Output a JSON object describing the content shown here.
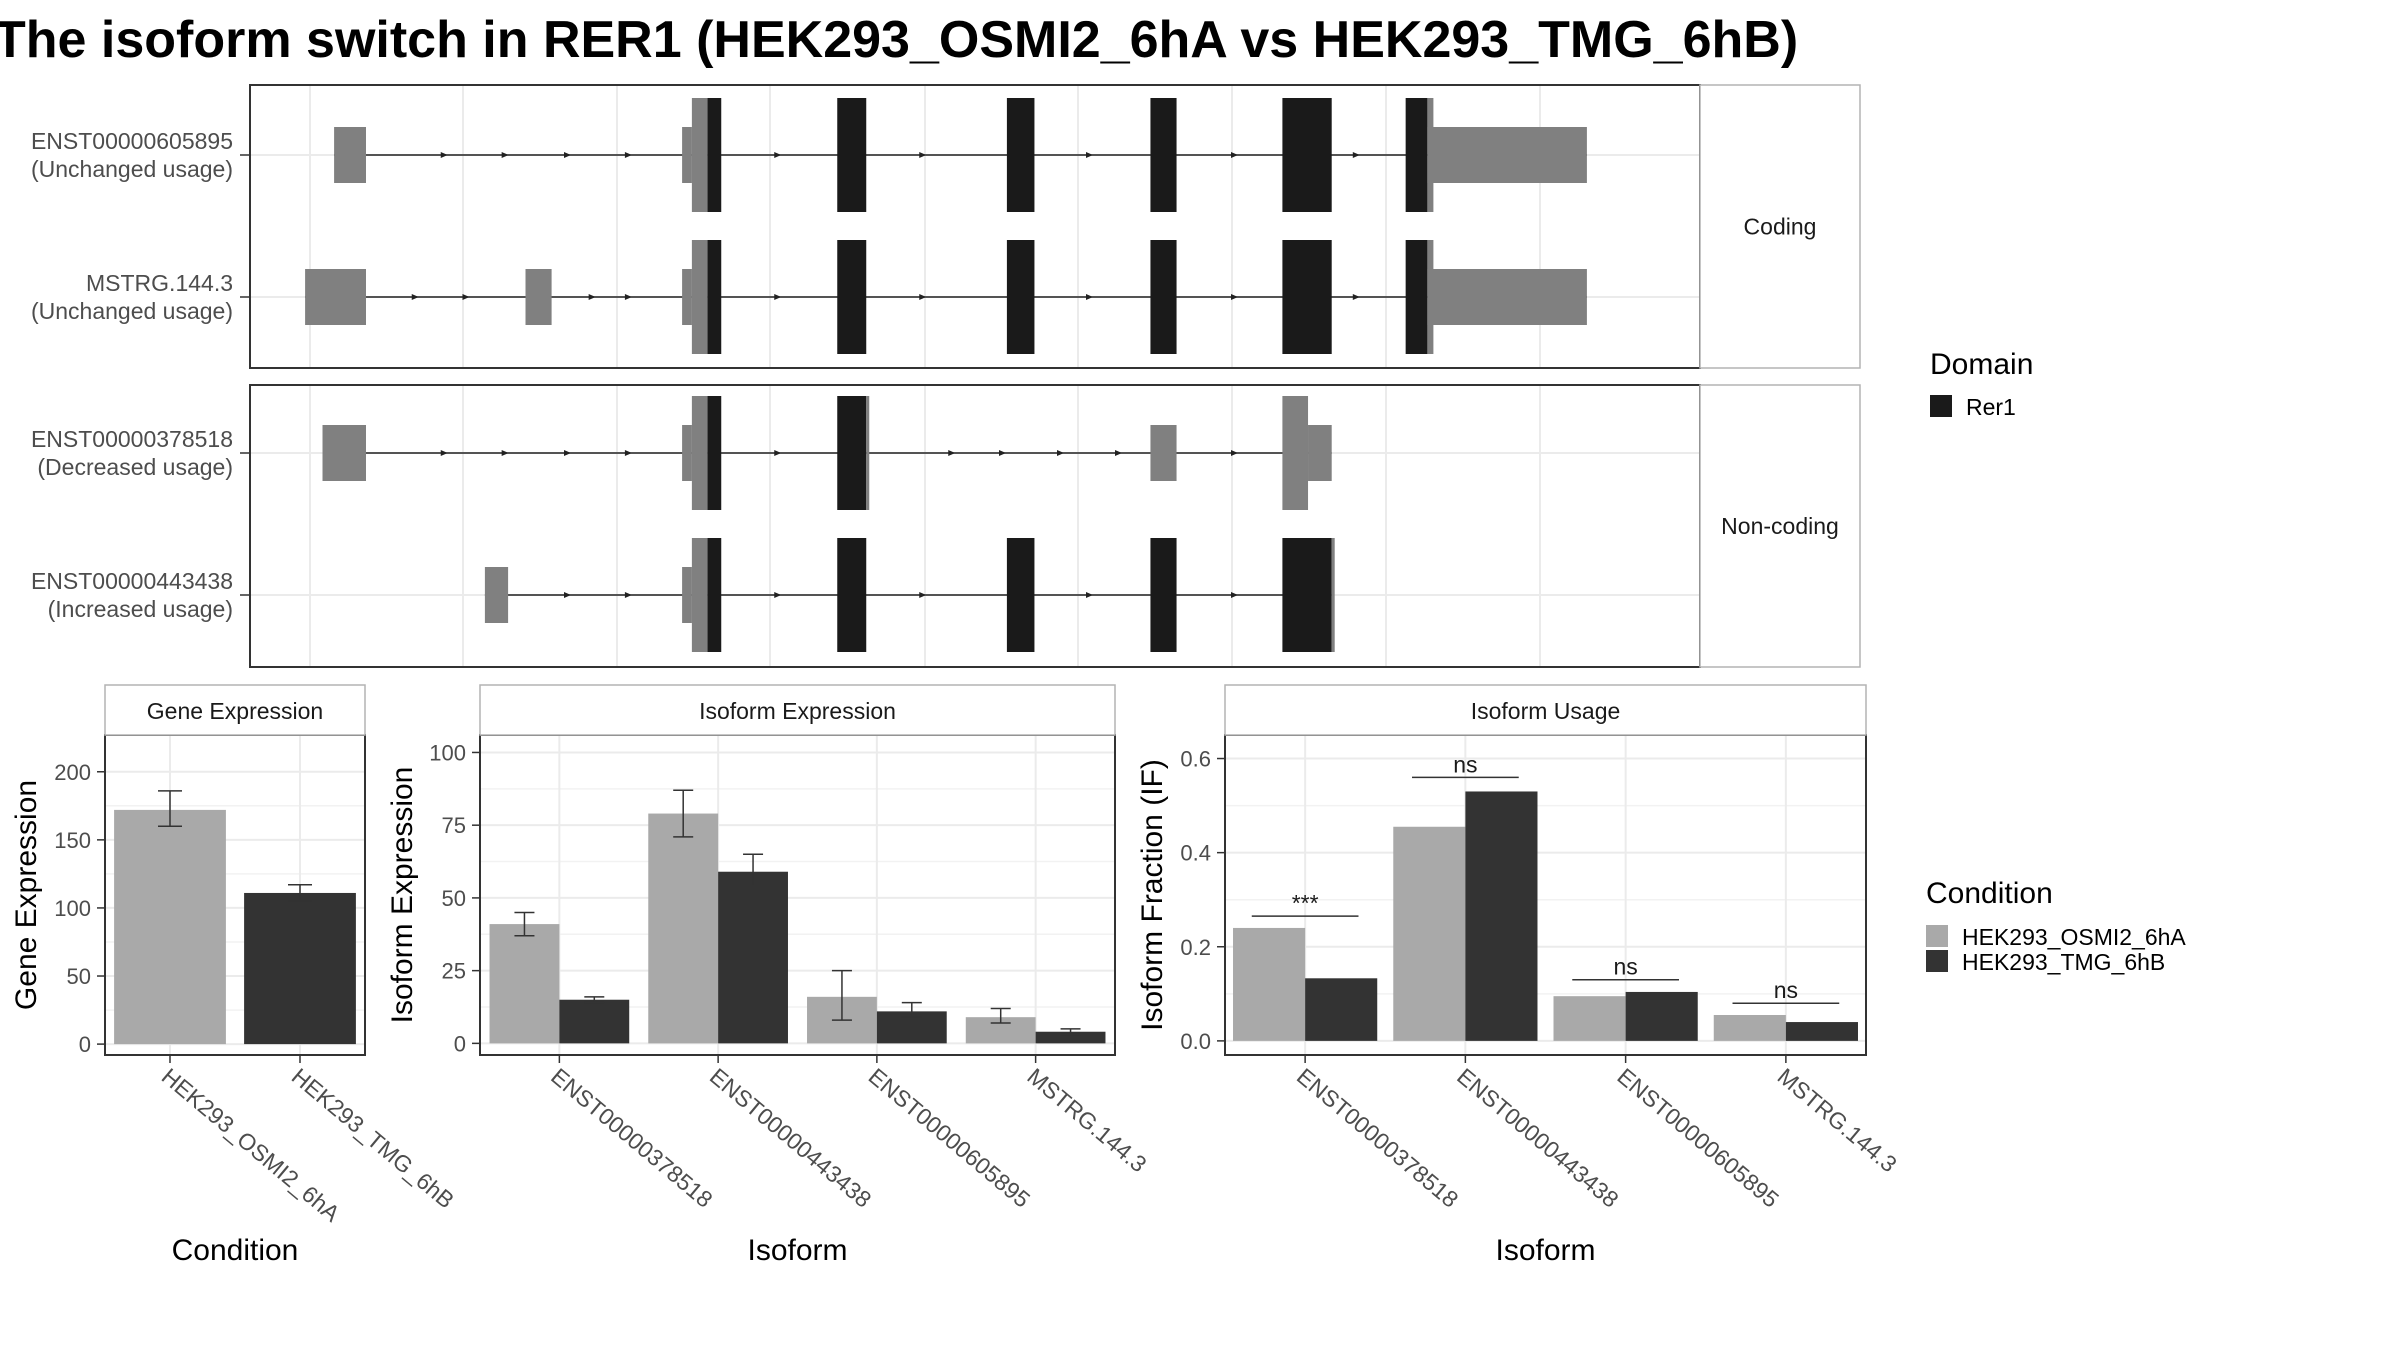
{
  "title": "The isoform switch in RER1 (HEK293_OSMI2_6hA vs HEK293_TMG_6hB)",
  "colors": {
    "utr": "#808080",
    "domain": "#1a1a1a",
    "cond_a": "#a9a9a9",
    "cond_b": "#333333",
    "strip_bg": "#ffffff",
    "grid": "#ebebeb",
    "panel_border": "#333333",
    "strip_border": "#b3b3b3"
  },
  "structure": {
    "groups": [
      {
        "label": "Coding",
        "transcripts": [
          {
            "id": "ENST00000605895",
            "usage": "(Unchanged usage)",
            "exons": [
              {
                "s": 0.058,
                "e": 0.08,
                "h": "utr"
              },
              {
                "s": 0.298,
                "e": 0.325,
                "h": "utr_cds"
              },
              {
                "s": 0.405,
                "e": 0.425,
                "h": "cds"
              },
              {
                "s": 0.522,
                "e": 0.541,
                "h": "cds"
              },
              {
                "s": 0.621,
                "e": 0.639,
                "h": "cds"
              },
              {
                "s": 0.712,
                "e": 0.746,
                "h": "cds"
              },
              {
                "s": 0.797,
                "e": 0.812,
                "h": "cds_utr"
              },
              {
                "s": 0.812,
                "e": 0.922,
                "h": "utr"
              }
            ],
            "arrows": [
              0.135,
              0.177,
              0.22,
              0.262,
              0.365,
              0.465,
              0.58,
              0.68,
              0.764
            ]
          },
          {
            "id": "MSTRG.144.3",
            "usage": "(Unchanged usage)",
            "exons": [
              {
                "s": 0.038,
                "e": 0.08,
                "h": "utr"
              },
              {
                "s": 0.19,
                "e": 0.208,
                "h": "utr"
              },
              {
                "s": 0.298,
                "e": 0.325,
                "h": "utr_cds"
              },
              {
                "s": 0.405,
                "e": 0.425,
                "h": "cds"
              },
              {
                "s": 0.522,
                "e": 0.541,
                "h": "cds"
              },
              {
                "s": 0.621,
                "e": 0.639,
                "h": "cds"
              },
              {
                "s": 0.712,
                "e": 0.746,
                "h": "cds"
              },
              {
                "s": 0.797,
                "e": 0.812,
                "h": "cds_utr"
              },
              {
                "s": 0.812,
                "e": 0.922,
                "h": "utr"
              }
            ],
            "arrows": [
              0.115,
              0.15,
              0.237,
              0.262,
              0.365,
              0.465,
              0.58,
              0.68,
              0.764
            ]
          }
        ]
      },
      {
        "label": "Non-coding",
        "transcripts": [
          {
            "id": "ENST00000378518",
            "usage": "(Decreased usage)",
            "exons": [
              {
                "s": 0.05,
                "e": 0.08,
                "h": "utr"
              },
              {
                "s": 0.298,
                "e": 0.325,
                "h": "utr_cds"
              },
              {
                "s": 0.405,
                "e": 0.425,
                "h": "cds"
              },
              {
                "s": 0.621,
                "e": 0.639,
                "h": "utr"
              },
              {
                "s": 0.712,
                "e": 0.746,
                "h": "utr_tail"
              }
            ],
            "arrows": [
              0.135,
              0.177,
              0.22,
              0.262,
              0.365,
              0.485,
              0.52,
              0.56,
              0.6,
              0.68
            ]
          },
          {
            "id": "ENST00000443438",
            "usage": "(Increased usage)",
            "exons": [
              {
                "s": 0.162,
                "e": 0.178,
                "h": "utr"
              },
              {
                "s": 0.298,
                "e": 0.325,
                "h": "utr_cds"
              },
              {
                "s": 0.405,
                "e": 0.425,
                "h": "cds"
              },
              {
                "s": 0.522,
                "e": 0.541,
                "h": "cds"
              },
              {
                "s": 0.621,
                "e": 0.639,
                "h": "cds"
              },
              {
                "s": 0.712,
                "e": 0.746,
                "h": "cds"
              }
            ],
            "arrows": [
              0.22,
              0.262,
              0.365,
              0.465,
              0.58,
              0.68
            ]
          }
        ]
      }
    ],
    "legend_title": "Domain",
    "legend_item": "Rer1"
  },
  "chart_data": [
    {
      "type": "bar",
      "title": "Gene Expression",
      "xlabel": "Condition",
      "ylabel": "Gene Expression",
      "categories": [
        "HEK293_OSMI2_6hA",
        "HEK293_TMG_6hB"
      ],
      "values": [
        172,
        111
      ],
      "errors": [
        [
          160,
          186
        ],
        [
          105,
          117
        ]
      ],
      "ylim": [
        -8,
        227
      ],
      "yticks": [
        0,
        50,
        100,
        150,
        200
      ]
    },
    {
      "type": "bar",
      "title": "Isoform Expression",
      "xlabel": "Isoform",
      "ylabel": "Isoform Expression",
      "categories": [
        "ENST00000378518",
        "ENST00000443438",
        "ENST00000605895",
        "MSTRG.144.3"
      ],
      "series": [
        {
          "name": "HEK293_OSMI2_6hA",
          "values": [
            41,
            79,
            16,
            9
          ],
          "errors": [
            [
              37,
              45
            ],
            [
              71,
              87
            ],
            [
              8,
              25
            ],
            [
              7,
              12
            ]
          ]
        },
        {
          "name": "HEK293_TMG_6hB",
          "values": [
            15,
            59,
            11,
            4
          ],
          "errors": [
            [
              14,
              16
            ],
            [
              54,
              65
            ],
            [
              9,
              14
            ],
            [
              3,
              5
            ]
          ]
        }
      ],
      "ylim": [
        -4,
        106
      ],
      "yticks": [
        0,
        25,
        50,
        75,
        100
      ]
    },
    {
      "type": "bar",
      "title": "Isoform Usage",
      "xlabel": "Isoform",
      "ylabel": "Isoform Fraction (IF)",
      "categories": [
        "ENST00000378518",
        "ENST00000443438",
        "ENST00000605895",
        "MSTRG.144.3"
      ],
      "series": [
        {
          "name": "HEK293_OSMI2_6hA",
          "values": [
            0.24,
            0.455,
            0.095,
            0.055
          ]
        },
        {
          "name": "HEK293_TMG_6hB",
          "values": [
            0.133,
            0.53,
            0.104,
            0.04
          ]
        }
      ],
      "significance": [
        "***",
        "ns",
        "ns",
        "ns"
      ],
      "sig_heights": [
        0.265,
        0.56,
        0.13,
        0.08
      ],
      "ylim": [
        -0.03,
        0.65
      ],
      "yticks": [
        0.0,
        0.2,
        0.4,
        0.6
      ],
      "ytick_labels": [
        "0.0",
        "0.2",
        "0.4",
        "0.6"
      ]
    }
  ],
  "condition_legend": {
    "title": "Condition",
    "items": [
      "HEK293_OSMI2_6hA",
      "HEK293_TMG_6hB"
    ]
  }
}
